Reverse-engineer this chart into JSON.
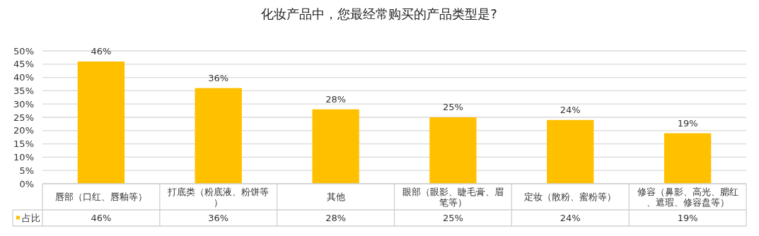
{
  "chart_data": {
    "type": "bar",
    "title": "化妆产品中，您最经常购买的产品类型是?",
    "categories": [
      "唇部（口红、唇釉等）",
      "打底类（粉底液、粉饼等）",
      "其他",
      "眼部（眼影、睫毛膏、眉笔等）",
      "定妆（散粉、蜜粉等）",
      "修容（鼻影、高光、腮红、遮瑕、修容盘等）"
    ],
    "series": [
      {
        "name": "占比",
        "color": "#ffc000",
        "values": [
          46,
          36,
          28,
          25,
          24,
          19
        ],
        "value_labels": [
          "46%",
          "36%",
          "28%",
          "25%",
          "24%",
          "19%"
        ]
      }
    ],
    "ylim": [
      0,
      50
    ],
    "yticks": [
      {
        "value": 0,
        "label": "0%"
      },
      {
        "value": 5,
        "label": "5%"
      },
      {
        "value": 10,
        "label": "10%"
      },
      {
        "value": 15,
        "label": "15%"
      },
      {
        "value": 20,
        "label": "20%"
      },
      {
        "value": 25,
        "label": "25%"
      },
      {
        "value": 30,
        "label": "30%"
      },
      {
        "value": 35,
        "label": "35%"
      },
      {
        "value": 40,
        "label": "40%"
      },
      {
        "value": 45,
        "label": "45%"
      },
      {
        "value": 50,
        "label": "50%"
      }
    ],
    "grid": "y",
    "legend": "bottom left"
  }
}
